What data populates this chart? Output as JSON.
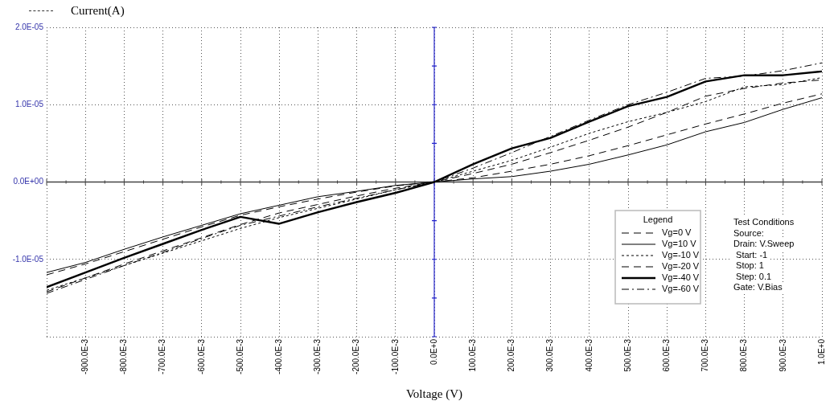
{
  "chart_data": {
    "type": "line",
    "xlabel": "Voltage (V)",
    "ylabel": "Current(A)",
    "legend": "bottom right",
    "legend_title": "Legend",
    "grid": true,
    "marker": "none",
    "ref_lines": [
      {
        "axis": "y",
        "value": 0,
        "color": "#444444"
      },
      {
        "axis": "x",
        "value": 0,
        "color": "#2222cc"
      }
    ],
    "x": [
      -1,
      -0.9,
      -0.8,
      -0.7,
      -0.6,
      -0.5,
      -0.4,
      -0.3,
      -0.2,
      -0.1,
      0,
      0.1,
      0.2,
      0.3,
      0.4,
      0.5,
      0.6,
      0.7,
      0.8,
      0.9,
      1
    ],
    "xlim": [
      -1,
      1
    ],
    "ylim": [
      -2e-05,
      2e-05
    ],
    "xticks": [
      {
        "value": -1,
        "label": null
      },
      {
        "value": -0.9,
        "label": "-900.0E-3"
      },
      {
        "value": -0.8,
        "label": "-800.0E-3"
      },
      {
        "value": -0.7,
        "label": "-700.0E-3"
      },
      {
        "value": -0.6,
        "label": "-600.0E-3"
      },
      {
        "value": -0.5,
        "label": "-500.0E-3"
      },
      {
        "value": -0.4,
        "label": "-400.0E-3"
      },
      {
        "value": -0.3,
        "label": "-300.0E-3"
      },
      {
        "value": -0.2,
        "label": "-200.0E-3"
      },
      {
        "value": -0.1,
        "label": "-100.0E-3"
      },
      {
        "value": 0,
        "label": "0.0E+0"
      },
      {
        "value": 0.1,
        "label": "100.0E-3"
      },
      {
        "value": 0.2,
        "label": "200.0E-3"
      },
      {
        "value": 0.3,
        "label": "300.0E-3"
      },
      {
        "value": 0.4,
        "label": "400.0E-3"
      },
      {
        "value": 0.5,
        "label": "500.0E-3"
      },
      {
        "value": 0.6,
        "label": "600.0E-3"
      },
      {
        "value": 0.7,
        "label": "700.0E-3"
      },
      {
        "value": 0.8,
        "label": "800.0E-3"
      },
      {
        "value": 0.9,
        "label": "900.0E-3"
      },
      {
        "value": 1,
        "label": "1.0E+0"
      }
    ],
    "yticks": [
      {
        "value": -2e-05,
        "label": null
      },
      {
        "value": -1e-05,
        "label": "-1.0E-05"
      },
      {
        "value": 0,
        "label": "0.0E+00"
      },
      {
        "value": 1e-05,
        "label": "1.0E-05"
      },
      {
        "value": 2e-05,
        "label": "2.0E-05"
      }
    ],
    "annotations": [
      "Test Conditions",
      "Source:",
      "Drain: V.Sweep",
      " Start: -1",
      " Stop: 1",
      " Step: 0.1",
      "Gate: V.Bias"
    ],
    "series": [
      {
        "name": "Vg=0 V",
        "color": "#000000",
        "line_style": "dashed",
        "values": [
          -1.2e-05,
          -1.06e-05,
          -9e-06,
          -7.4e-06,
          -5.8e-06,
          -4.3e-06,
          -3.2e-06,
          -2.2e-06,
          -1.3e-06,
          -5e-07,
          0,
          5.5e-07,
          1.4e-06,
          2.3e-06,
          3.4e-06,
          4.7e-06,
          6.1e-06,
          7.5e-06,
          8.8e-06,
          1.02e-05,
          1.14e-05
        ]
      },
      {
        "name": "Vg=10 V",
        "color": "#000000",
        "line_style": "solid",
        "values": [
          -1.17e-05,
          -1.04e-05,
          -8.7e-06,
          -7.1e-06,
          -5.6e-06,
          -4.1e-06,
          -3e-06,
          -1.9e-06,
          -1.2e-06,
          -4.4e-07,
          0,
          4e-07,
          7e-07,
          1.4e-06,
          2.3e-06,
          3.5e-06,
          4.8e-06,
          6.5e-06,
          7.7e-06,
          9.4e-06,
          1.09e-05
        ]
      },
      {
        "name": "Vg=-10 V",
        "color": "#000000",
        "line_style": "dotted",
        "values": [
          -1.4e-05,
          -1.24e-05,
          -1.08e-05,
          -9.2e-06,
          -7.6e-06,
          -6e-06,
          -4.6e-06,
          -3.4e-06,
          -2.2e-06,
          -1e-06,
          0,
          1.4e-06,
          2.8e-06,
          4.5e-06,
          6.3e-06,
          7.8e-06,
          9e-06,
          1.04e-05,
          1.23e-05,
          1.26e-05,
          1.35e-05
        ]
      },
      {
        "name": "Vg=-20 V",
        "color": "#000000",
        "line_style": "dashed",
        "values": [
          -1.42e-05,
          -1.24e-05,
          -1.06e-05,
          -8.9e-06,
          -7.2e-06,
          -5.5e-06,
          -4e-06,
          -2.9e-06,
          -1.8e-06,
          -8e-07,
          0,
          1.1e-06,
          2.3e-06,
          3.8e-06,
          5.4e-06,
          7.1e-06,
          9e-06,
          1.11e-05,
          1.21e-05,
          1.28e-05,
          1.32e-05
        ]
      },
      {
        "name": "Vg=-40 V",
        "color": "#000000",
        "line_style": "solid",
        "values": [
          -1.36e-05,
          -1.17e-05,
          -9.8e-06,
          -8e-06,
          -6.2e-06,
          -4.5e-06,
          -5.4e-06,
          -3.9e-06,
          -2.6e-06,
          -1.4e-06,
          0,
          2.3e-06,
          4.35e-06,
          5.7e-06,
          7.8e-06,
          9.8e-06,
          1.1e-05,
          1.3e-05,
          1.38e-05,
          1.38e-05,
          1.43e-05
        ]
      },
      {
        "name": "Vg=-60 V",
        "color": "#000000",
        "line_style": "dashdot",
        "values": [
          -1.44e-05,
          -1.26e-05,
          -1.08e-05,
          -9.1e-06,
          -7.3e-06,
          -5.6e-06,
          -4.4e-06,
          -3.2e-06,
          -2.1e-06,
          -1e-06,
          0,
          1.8e-06,
          3.8e-06,
          5.9e-06,
          8e-06,
          1e-05,
          1.16e-05,
          1.34e-05,
          1.37e-05,
          1.44e-05,
          1.54e-05
        ]
      }
    ]
  }
}
